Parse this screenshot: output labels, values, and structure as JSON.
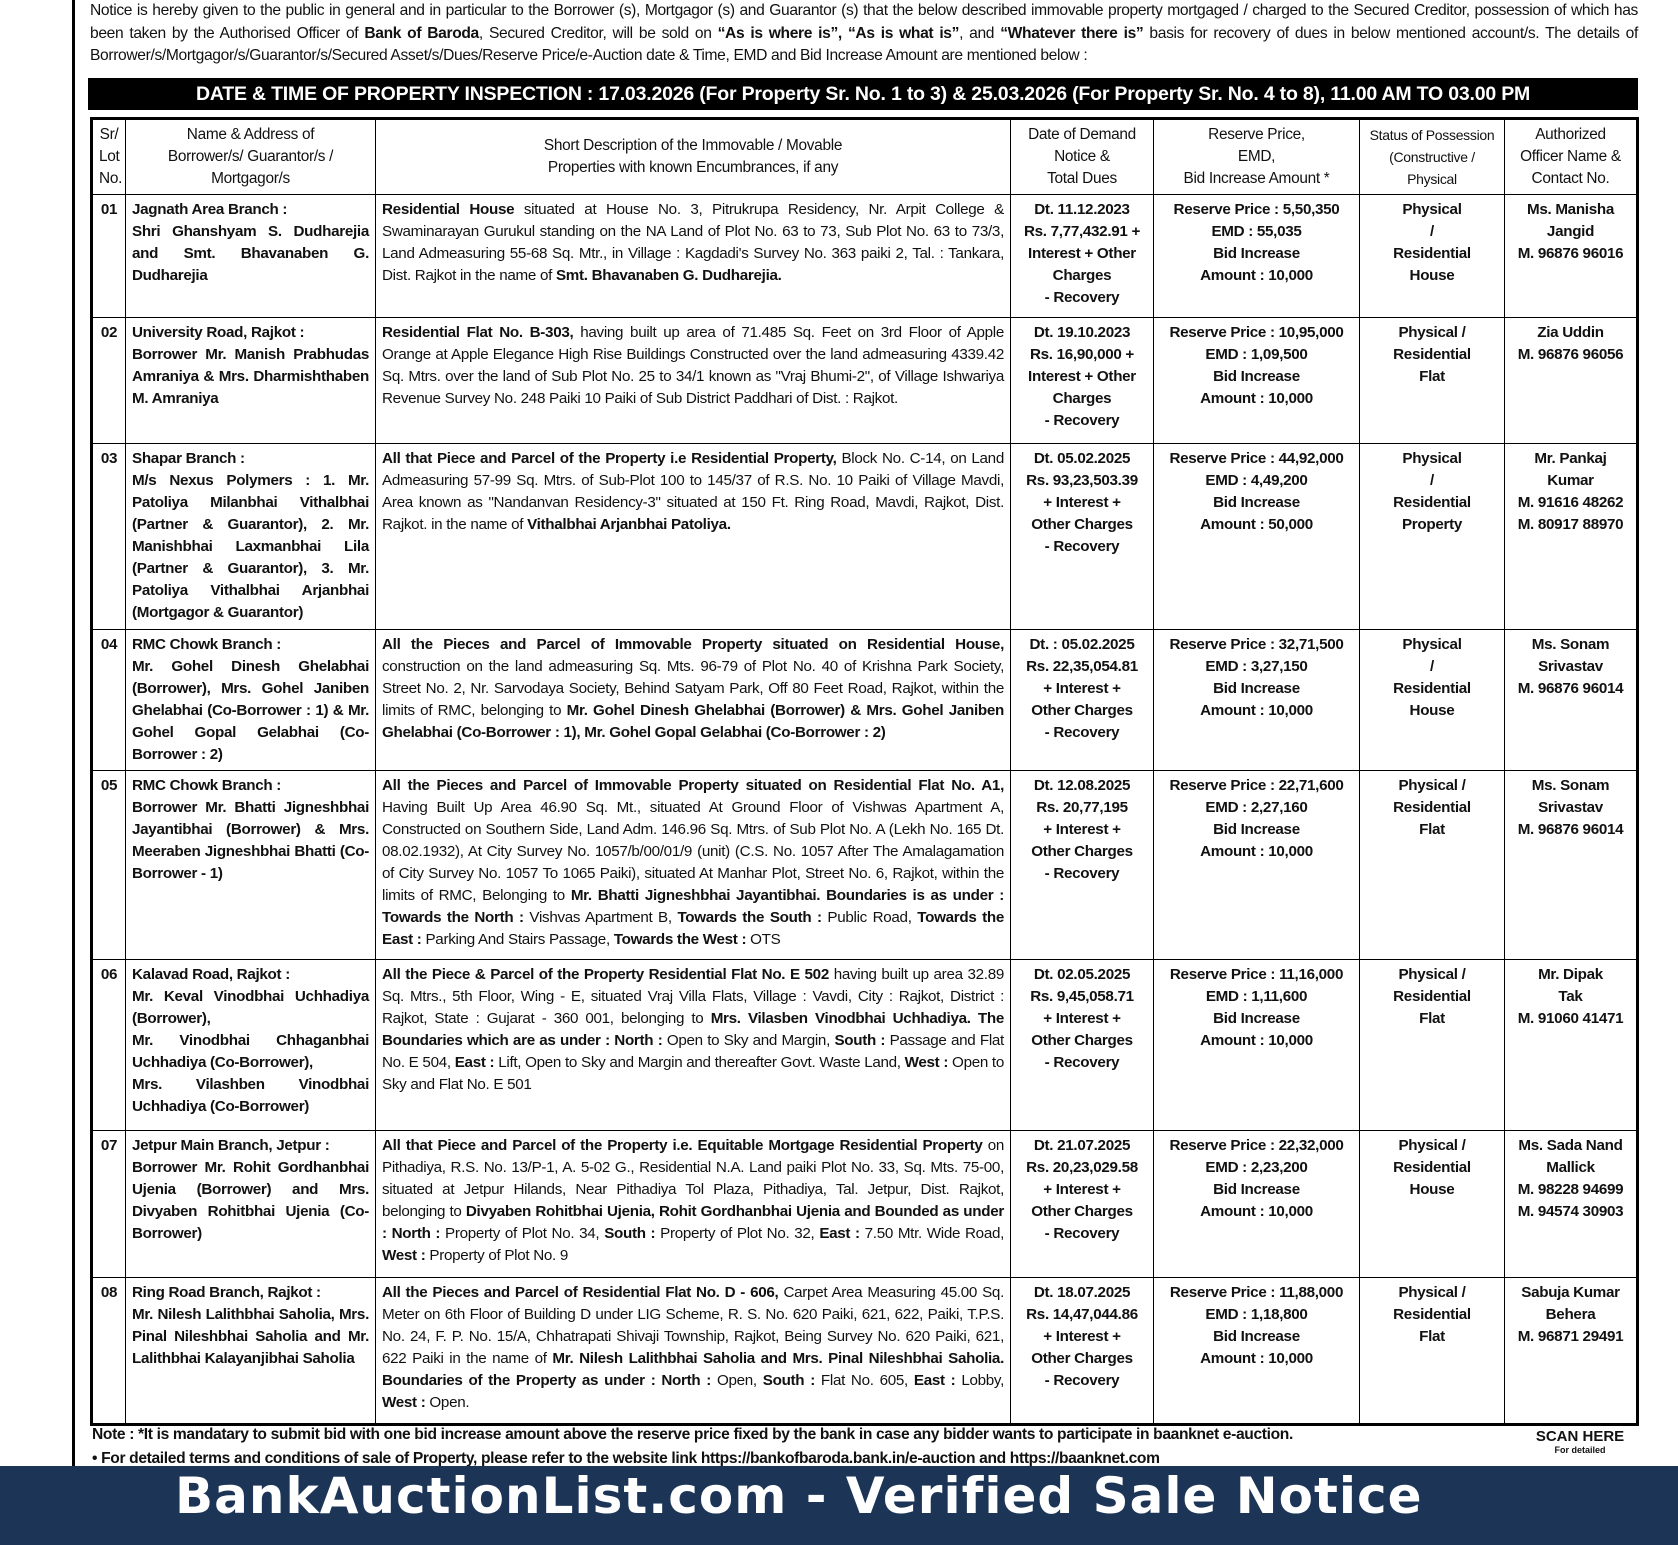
{
  "intro": {
    "parts": [
      {
        "t": "Notice is hereby given to the public in general and in particular to the Borrower (s), Mortgagor (s) and Guarantor (s) that the below described immovable property mortgaged / charged to the Secured Creditor, possession of which has been taken by the Authorised Officer of ",
        "b": false
      },
      {
        "t": "Bank of Baroda",
        "b": true
      },
      {
        "t": ", Secured Creditor, will be sold on ",
        "b": false
      },
      {
        "t": "“As is where is”, “As is what is”",
        "b": true
      },
      {
        "t": ", and ",
        "b": false
      },
      {
        "t": "“Whatever there is”",
        "b": true
      },
      {
        "t": " basis for recovery of dues in below mentioned account/s. The details of Borrower/s/Mortgagor/s/Guarantor/s/Secured Asset/s/Dues/Reserve Price/e-Auction date & Time, EMD and Bid Increase Amount are mentioned below :",
        "b": false
      }
    ]
  },
  "inspection": "DATE & TIME OF PROPERTY INSPECTION : 17.03.2026 (For Property Sr. No. 1 to 3) & 25.03.2026 (For Property Sr. No. 4 to 8), 11.00 AM TO 03.00 PM",
  "table": {
    "headers": [
      "Sr/\nLot\nNo.",
      "Name & Address of\nBorrower/s/ Guarantor/s /\nMortgagor/s",
      "Short Description of the Immovable / Movable\nProperties with known Encumbrances, if any",
      "Date of Demand\nNotice &\nTotal Dues",
      "Reserve Price,\nEMD,\nBid  Increase Amount *",
      "Status of Possession\n(Constructive /\nPhysical",
      "Authorized\nOfficer Name &\nContact No."
    ],
    "rows": [
      {
        "sr": "01",
        "name": "Jagnath Area Branch :\nShri Ghanshyam S. Dudharejia and Smt. Bhavanaben G. Dudharejia",
        "desc": [
          {
            "t": "Residential House",
            "b": true
          },
          {
            "t": " situated at House No. 3, Pitrukrupa Residency, Nr. Arpit College & Swaminarayan Gurukul standing on the NA Land of Plot No. 63 to 73, Sub Plot No. 63 to 73/3, Land Admeasuring 55-68 Sq. Mtr., in Village : Kagdadi's Survey No. 363 paiki 2, Tal. : Tankara, Dist. Rajkot in the name of ",
            "b": false
          },
          {
            "t": "Smt. Bhavanaben G. Dudharejia.",
            "b": true
          }
        ],
        "dues": "Dt. 11.12.2023\nRs. 7,77,432.91 +\nInterest + Other\nCharges\n- Recovery",
        "reserve": "Reserve Price : 5,50,350\nEMD : 55,035\nBid Increase\nAmount : 10,000",
        "status": "Physical\n/\nResidential\nHouse",
        "officer": "Ms. Manisha\nJangid\nM. 96876 96016"
      },
      {
        "sr": "02",
        "name": "University Road, Rajkot :\nBorrower Mr. Manish Prabhudas Amraniya & Mrs. Dharmishthaben M. Amraniya",
        "desc": [
          {
            "t": "Residential Flat No. B-303,",
            "b": true
          },
          {
            "t": " having built up area of 71.485 Sq. Feet on 3rd Floor of Apple Orange at Apple Elegance High Rise Buildings Constructed over the land admeasuring 4339.42 Sq. Mtrs. over the land of Sub Plot No. 25 to 34/1 known as \"Vraj Bhumi-2\", of Village Ishwariya Revenue Survey No. 248 Paiki 10 Paiki of Sub District Paddhari of Dist. : Rajkot.",
            "b": false
          }
        ],
        "dues": "Dt. 19.10.2023\nRs. 16,90,000 +\nInterest + Other\nCharges\n- Recovery",
        "reserve": "Reserve Price : 10,95,000\nEMD : 1,09,500\nBid Increase\nAmount : 10,000",
        "status": "Physical /\nResidential\nFlat",
        "officer": "Zia Uddin\nM. 96876 96056"
      },
      {
        "sr": "03",
        "name": "Shapar Branch :\nM/s Nexus Polymers : 1. Mr. Patoliya Milanbhai Vithalbhai (Partner & Guarantor), 2. Mr. Manishbhai Laxmanbhai Lila (Partner & Guarantor), 3. Mr. Patoliya Vithalbhai Arjanbhai (Mortgagor & Guarantor)",
        "desc": [
          {
            "t": "All that Piece and Parcel of the Property i.e Residential Property,",
            "b": true
          },
          {
            "t": " Block No. C-14, on Land Admeasuring 57-99 Sq. Mtrs. of Sub-Plot 100 to 145/37 of R.S. No. 10 Paiki of Village Mavdi, Area known as \"Nandanvan Residency-3\" situated at 150 Ft. Ring Road, Mavdi, Rajkot, Dist. Rajkot. in the name of ",
            "b": false
          },
          {
            "t": "Vithalbhai Arjanbhai Patoliya.",
            "b": true
          }
        ],
        "dues": "Dt. 05.02.2025\nRs. 93,23,503.39\n+ Interest +\nOther Charges\n- Recovery",
        "reserve": "Reserve Price : 44,92,000\nEMD : 4,49,200\nBid Increase\nAmount : 50,000",
        "status": "Physical\n/\nResidential\nProperty",
        "officer": "Mr. Pankaj\nKumar\nM. 91616 48262\nM. 80917 88970"
      },
      {
        "sr": "04",
        "name": "RMC Chowk Branch :\nMr. Gohel Dinesh Ghelabhai (Borrower), Mrs. Gohel Janiben Ghelabhai (Co-Borrower : 1) & Mr. Gohel Gopal Gelabhai (Co-Borrower : 2)",
        "desc": [
          {
            "t": "All the Pieces and Parcel of Immovable Property situated on Residential House,",
            "b": true
          },
          {
            "t": " construction on the land admeasuring Sq. Mts. 96-79 of Plot No. 40 of Krishna Park Society, Street No. 2, Nr. Sarvodaya Society, Behind Satyam Park, Off 80 Feet Road, Rajkot, within the limits of RMC, belonging to ",
            "b": false
          },
          {
            "t": "Mr. Gohel Dinesh Ghelabhai (Borrower) & Mrs. Gohel Janiben Ghelabhai (Co-Borrower : 1), Mr. Gohel Gopal Gelabhai (Co-Borrower : 2)",
            "b": true
          }
        ],
        "dues": "Dt. : 05.02.2025\nRs. 22,35,054.81\n+ Interest +\nOther Charges\n- Recovery",
        "reserve": "Reserve Price : 32,71,500\nEMD : 3,27,150\nBid Increase\nAmount : 10,000",
        "status": "Physical\n/\nResidential\nHouse",
        "officer": "Ms. Sonam\nSrivastav\nM. 96876 96014"
      },
      {
        "sr": "05",
        "name": "RMC Chowk Branch :\nBorrower Mr. Bhatti Jigneshbhai Jayantibhai (Borrower) & Mrs. Meeraben Jigneshbhai Bhatti (Co-Borrower - 1)",
        "desc": [
          {
            "t": "All the Pieces and Parcel of Immovable Property situated on Residential Flat No. A1,",
            "b": true
          },
          {
            "t": " Having Built Up Area 46.90 Sq. Mt., situated At Ground Floor of Vishwas Apartment A, Constructed on Southern Side, Land Adm. 146.96 Sq. Mtrs. of Sub Plot No. A (Lekh No. 165 Dt. 08.02.1932), At City Survey No. 1057/b/00/01/9 (unit) (C.S. No. 1057 After The Amalagamation of City Survey No. 1057 To 1065 Paiki), situated At Manhar Plot, Street No. 6, Rajkot, within the limits of RMC, Belonging to ",
            "b": false
          },
          {
            "t": "Mr. Bhatti Jigneshbhai Jayantibhai. Boundaries is as under : Towards the North :",
            "b": true
          },
          {
            "t": " Vishvas Apartment B, ",
            "b": false
          },
          {
            "t": "Towards the South :",
            "b": true
          },
          {
            "t": " Public Road, ",
            "b": false
          },
          {
            "t": "Towards the East :",
            "b": true
          },
          {
            "t": " Parking And Stairs Passage, ",
            "b": false
          },
          {
            "t": "Towards the West :",
            "b": true
          },
          {
            "t": " OTS",
            "b": false
          }
        ],
        "dues": "Dt. 12.08.2025\nRs. 20,77,195\n+ Interest +\nOther Charges\n- Recovery",
        "reserve": "Reserve Price : 22,71,600\nEMD : 2,27,160\nBid Increase\nAmount : 10,000",
        "status": "Physical /\nResidential\nFlat",
        "officer": "Ms. Sonam\nSrivastav\nM. 96876 96014"
      },
      {
        "sr": "06",
        "name": "Kalavad Road, Rajkot :\nMr. Keval Vinodbhai Uchhadiya (Borrower),\nMr. Vinodbhai Chhaganbhai Uchhadiya (Co-Borrower),\nMrs. Vilashben Vinodbhai Uchhadiya (Co-Borrower)",
        "desc": [
          {
            "t": "All the Piece & Parcel of the Property Residential Flat No. E 502",
            "b": true
          },
          {
            "t": " having built up area 32.89 Sq. Mtrs., 5th Floor, Wing - E, situated Vraj Villa Flats, Village : Vavdi, City : Rajkot, District : Rajkot, State : Gujarat - 360 001, belonging to ",
            "b": false
          },
          {
            "t": "Mrs. Vilasben Vinodbhai Uchhadiya. The Boundaries which are as under : North :",
            "b": true
          },
          {
            "t": " Open to Sky and Margin, ",
            "b": false
          },
          {
            "t": "South :",
            "b": true
          },
          {
            "t": " Passage and Flat No. E 504, ",
            "b": false
          },
          {
            "t": "East :",
            "b": true
          },
          {
            "t": " Lift, Open to Sky and Margin and thereafter Govt. Waste Land, ",
            "b": false
          },
          {
            "t": "West :",
            "b": true
          },
          {
            "t": " Open to Sky and Flat No. E 501",
            "b": false
          }
        ],
        "dues": "Dt. 02.05.2025\nRs. 9,45,058.71\n+ Interest +\nOther Charges\n- Recovery",
        "reserve": "Reserve Price : 11,16,000\nEMD : 1,11,600\nBid Increase\nAmount : 10,000",
        "status": "Physical /\nResidential\nFlat",
        "officer": "Mr. Dipak\nTak\nM. 91060 41471"
      },
      {
        "sr": "07",
        "name": "Jetpur Main Branch, Jetpur :\nBorrower Mr. Rohit Gordhanbhai Ujenia (Borrower) and Mrs. Divyaben Rohitbhai Ujenia (Co-Borrower)",
        "desc": [
          {
            "t": "All that Piece and Parcel of the Property i.e. Equitable Mortgage Residential Property",
            "b": true
          },
          {
            "t": " on Pithadiya, R.S. No. 13/P-1, A. 5-02 G., Residential N.A. Land paiki Plot No. 33, Sq. Mts. 75-00, situated at Jetpur Hilands, Near Pithadiya Tol Plaza, Pithadiya, Tal. Jetpur, Dist. Rajkot, belonging to ",
            "b": false
          },
          {
            "t": "Divyaben Rohitbhai Ujenia, Rohit Gordhanbhai Ujenia and Bounded as under : North :",
            "b": true
          },
          {
            "t": " Property of Plot No. 34, ",
            "b": false
          },
          {
            "t": "South :",
            "b": true
          },
          {
            "t": " Property of Plot No. 32, ",
            "b": false
          },
          {
            "t": "East :",
            "b": true
          },
          {
            "t": " 7.50 Mtr. Wide Road, ",
            "b": false
          },
          {
            "t": "West :",
            "b": true
          },
          {
            "t": " Property of Plot No. 9",
            "b": false
          }
        ],
        "dues": "Dt. 21.07.2025\nRs. 20,23,029.58\n+ Interest +\nOther Charges\n- Recovery",
        "reserve": "Reserve Price : 22,32,000\nEMD : 2,23,200\nBid Increase\nAmount : 10,000",
        "status": "Physical /\nResidential\nHouse",
        "officer": "Ms. Sada Nand\nMallick\nM. 98228 94699\nM. 94574 30903"
      },
      {
        "sr": "08",
        "name": "Ring Road Branch, Rajkot :\nMr. Nilesh Lalithbhai Saholia, Mrs. Pinal Nileshbhai Saholia and Mr. Lalithbhai Kalayanjibhai Saholia",
        "desc": [
          {
            "t": "All the Pieces and Parcel of Residential Flat No. D - 606,",
            "b": true
          },
          {
            "t": " Carpet Area Measuring 45.00 Sq. Meter on 6th Floor of Building D under LIG Scheme, R. S. No. 620 Paiki, 621, 622, Paiki, T.P.S. No. 24, F. P. No. 15/A, Chhatrapati Shivaji Township, Rajkot, Being Survey No. 620 Paiki, 621, 622 Paiki in the name of ",
            "b": false
          },
          {
            "t": "Mr. Nilesh Lalithbhai Saholia and Mrs. Pinal Nileshbhai Saholia. Boundaries of the Property as under : North :",
            "b": true
          },
          {
            "t": " Open, ",
            "b": false
          },
          {
            "t": "South :",
            "b": true
          },
          {
            "t": " Flat No. 605, ",
            "b": false
          },
          {
            "t": "East :",
            "b": true
          },
          {
            "t": " Lobby, ",
            "b": false
          },
          {
            "t": "West :",
            "b": true
          },
          {
            "t": " Open.",
            "b": false
          }
        ],
        "dues": "Dt. 18.07.2025\nRs. 14,47,044.86\n+ Interest +\nOther Charges\n- Recovery",
        "reserve": "Reserve Price : 11,88,000\nEMD : 1,18,800\nBid Increase\nAmount : 10,000",
        "status": "Physical /\nResidential\nFlat",
        "officer": "Sabuja Kumar\nBehera\nM. 96871 29491"
      }
    ]
  },
  "note": "Note : *It is mandatary to submit bid with one bid increase amount above the reserve price fixed by the bank in case any bidder wants to participate in baanknet e-auction.",
  "note2": "• For detailed terms and conditions of sale of Property, please refer to the website link https://bankofbaroda.bank.in/e-auction and https://baanknet.com",
  "scan": {
    "title": "SCAN HERE",
    "sub": "For detailed"
  },
  "banner": "BankAuctionList.com - Verified Sale Notice",
  "colors": {
    "banner": "#1c3557",
    "inspection_bar": "#000000"
  }
}
